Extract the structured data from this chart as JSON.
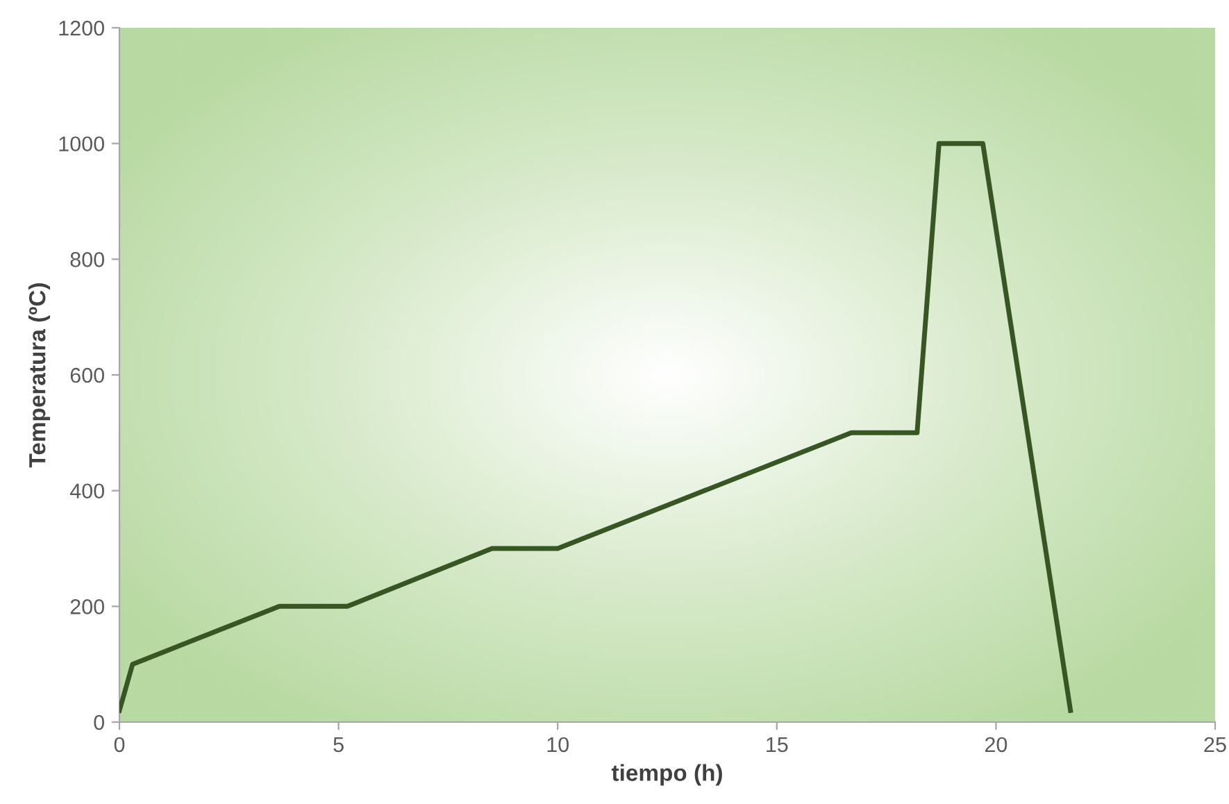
{
  "chart_data": {
    "type": "line",
    "xlabel": "tiempo (h)",
    "ylabel": "Temperatura (ºC)",
    "x": [
      0,
      0.3,
      3.65,
      5.2,
      8.5,
      10,
      16.7,
      18.2,
      18.7,
      19.7,
      21.7
    ],
    "series": [
      {
        "color": "#375623",
        "values": [
          20,
          100,
          200,
          200,
          300,
          300,
          500,
          500,
          1000,
          1000,
          20
        ]
      }
    ],
    "xlim": [
      0,
      25
    ],
    "xticks": [
      0,
      5,
      10,
      15,
      20,
      25
    ],
    "ylim": [
      0,
      1200
    ],
    "yticks": [
      0,
      200,
      400,
      600,
      800,
      1000,
      1200
    ],
    "grid": false,
    "marker": "none",
    "line_style": "solid"
  }
}
